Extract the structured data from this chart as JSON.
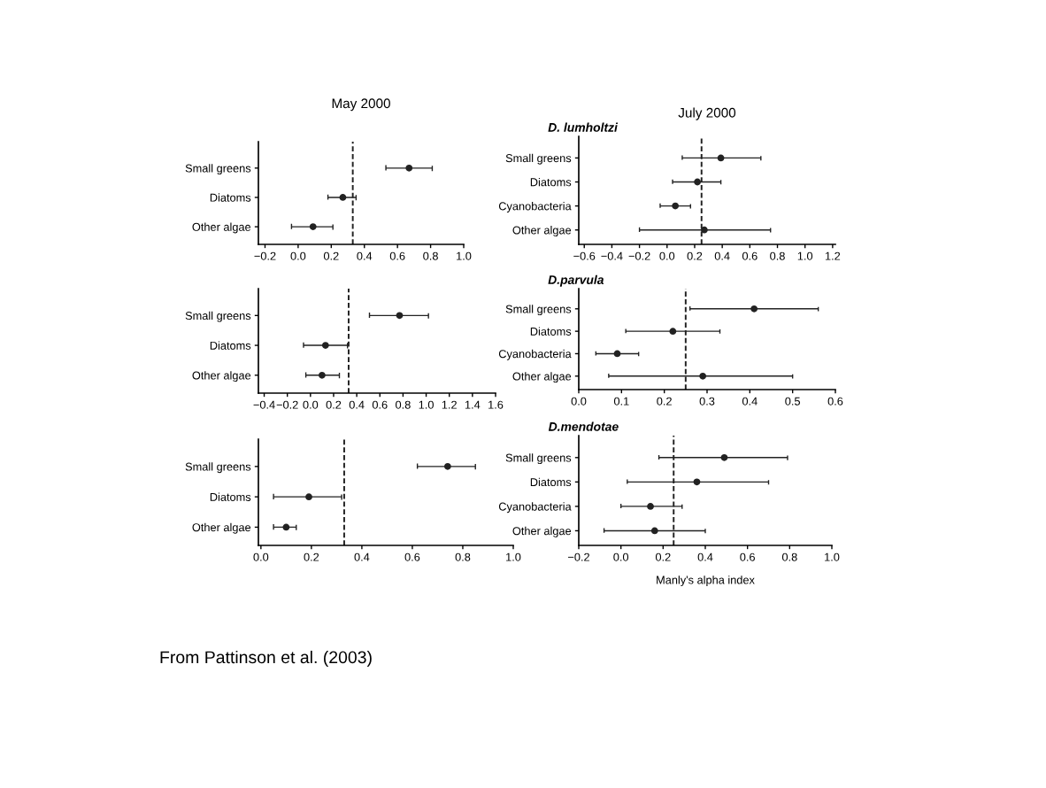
{
  "chart_data": [
    {
      "type": "scatter",
      "orientation": "horizontal",
      "title": "May 2000",
      "categories": [
        "Small greens",
        "Diatoms",
        "Other algae"
      ],
      "values": [
        0.67,
        0.27,
        0.09
      ],
      "errors": [
        [
          0.53,
          0.81
        ],
        [
          0.18,
          0.35
        ],
        [
          -0.04,
          0.21
        ]
      ],
      "color": "#222222",
      "marker": "circle",
      "xlim": [
        -0.24,
        1.0
      ],
      "xticks": [
        {
          "value": -0.2,
          "label": "−0.2"
        },
        {
          "value": 0,
          "label": "0.0"
        },
        0.2,
        0.4,
        0.6,
        0.8,
        {
          "value": 1,
          "label": "1.0"
        }
      ],
      "ref_lines": [
        {
          "axis": "x",
          "value": 0.33,
          "line_style": "dashed"
        }
      ]
    },
    {
      "type": "scatter",
      "orientation": "horizontal",
      "title": "July 2000",
      "subtitle": "D. lumholtzi",
      "categories": [
        "Small greens",
        "Diatoms",
        "Cyanobacteria",
        "Other algae"
      ],
      "values": [
        0.39,
        0.22,
        0.06,
        0.27
      ],
      "errors": [
        [
          0.11,
          0.68
        ],
        [
          0.04,
          0.39
        ],
        [
          -0.05,
          0.17
        ],
        [
          -0.2,
          0.75
        ]
      ],
      "color": "#222222",
      "marker": "circle",
      "xlim": [
        -0.64,
        1.22
      ],
      "xticks": [
        {
          "value": -0.6,
          "label": "−0.6"
        },
        {
          "value": -0.4,
          "label": "−0.4"
        },
        {
          "value": -0.2,
          "label": "−0.2"
        },
        {
          "value": 0,
          "label": "0.0"
        },
        0.2,
        0.4,
        0.6,
        0.8,
        {
          "value": 1,
          "label": "1.0"
        },
        1.2
      ],
      "ref_lines": [
        {
          "axis": "x",
          "value": 0.25,
          "line_style": "dashed"
        }
      ]
    },
    {
      "type": "scatter",
      "orientation": "horizontal",
      "categories": [
        "Small greens",
        "Diatoms",
        "Other algae"
      ],
      "values": [
        0.77,
        0.13,
        0.1
      ],
      "errors": [
        [
          0.51,
          1.02
        ],
        [
          -0.06,
          0.32
        ],
        [
          -0.04,
          0.25
        ]
      ],
      "color": "#222222",
      "marker": "circle",
      "xlim": [
        -0.45,
        1.6
      ],
      "xticks": [
        {
          "value": -0.4,
          "label": "−0.4"
        },
        {
          "value": -0.2,
          "label": "−0.2"
        },
        {
          "value": 0,
          "label": "0.0"
        },
        0.2,
        0.4,
        0.6,
        0.8,
        {
          "value": 1,
          "label": "1.0"
        },
        1.2,
        1.4,
        1.6
      ],
      "ref_lines": [
        {
          "axis": "x",
          "value": 0.33,
          "line_style": "dashed"
        }
      ]
    },
    {
      "type": "scatter",
      "orientation": "horizontal",
      "subtitle": "D.parvula",
      "categories": [
        "Small greens",
        "Diatoms",
        "Cyanobacteria",
        "Other algae"
      ],
      "values": [
        0.41,
        0.22,
        0.09,
        0.29
      ],
      "errors": [
        [
          0.26,
          0.56
        ],
        [
          0.11,
          0.33
        ],
        [
          0.04,
          0.14
        ],
        [
          0.07,
          0.5
        ]
      ],
      "color": "#222222",
      "marker": "circle",
      "xlim": [
        0.0,
        0.6
      ],
      "xticks": [
        {
          "value": 0,
          "label": "0.0"
        },
        0.1,
        0.2,
        0.3,
        0.4,
        0.5,
        0.6
      ],
      "ref_lines": [
        {
          "axis": "x",
          "value": 0.25,
          "line_style": "dashed"
        }
      ]
    },
    {
      "type": "scatter",
      "orientation": "horizontal",
      "categories": [
        "Small greens",
        "Diatoms",
        "Other algae"
      ],
      "values": [
        0.74,
        0.19,
        0.1
      ],
      "errors": [
        [
          0.62,
          0.85
        ],
        [
          0.05,
          0.32
        ],
        [
          0.05,
          0.14
        ]
      ],
      "color": "#222222",
      "marker": "circle",
      "xlim": [
        -0.01,
        1.0
      ],
      "xticks": [
        {
          "value": 0,
          "label": "0.0"
        },
        0.2,
        0.4,
        0.6,
        0.8,
        {
          "value": 1,
          "label": "1.0"
        }
      ],
      "ref_lines": [
        {
          "axis": "x",
          "value": 0.33,
          "line_style": "dashed"
        }
      ]
    },
    {
      "type": "scatter",
      "orientation": "horizontal",
      "subtitle": "D.mendotae",
      "xlabel": "Manly's alpha index",
      "categories": [
        "Small greens",
        "Diatoms",
        "Cyanobacteria",
        "Other algae"
      ],
      "values": [
        0.49,
        0.36,
        0.14,
        0.16
      ],
      "errors": [
        [
          0.18,
          0.79
        ],
        [
          0.03,
          0.7
        ],
        [
          0.0,
          0.29
        ],
        [
          -0.08,
          0.4
        ]
      ],
      "color": "#222222",
      "marker": "circle",
      "xlim": [
        -0.2,
        1.0
      ],
      "xticks": [
        {
          "value": -0.2,
          "label": "−0.2"
        },
        {
          "value": 0,
          "label": "0.0"
        },
        0.2,
        0.4,
        0.6,
        0.8,
        {
          "value": 1,
          "label": "1.0"
        }
      ],
      "ref_lines": [
        {
          "axis": "x",
          "value": 0.25,
          "line_style": "dashed"
        }
      ],
      "annotations": [
        "From Pattinson et al. (2003)"
      ]
    }
  ]
}
